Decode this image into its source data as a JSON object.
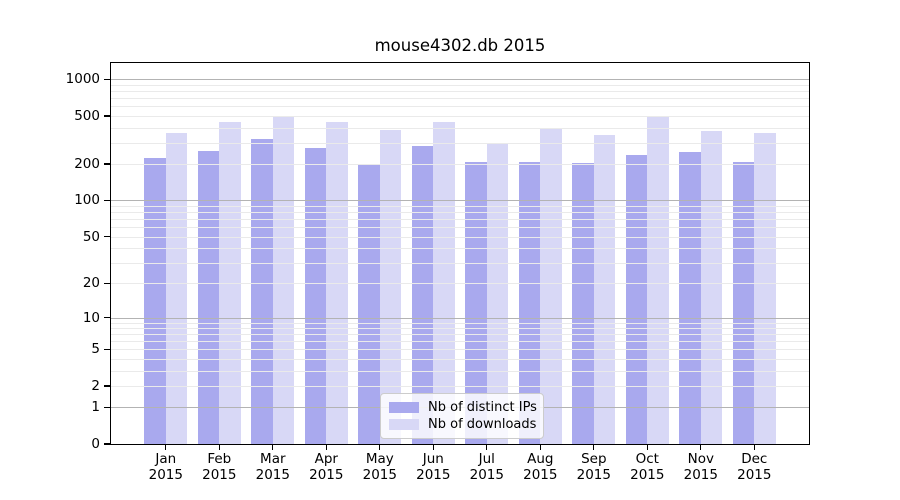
{
  "title": "mouse4302.db 2015",
  "chart_data": {
    "type": "bar",
    "title": "mouse4302.db 2015",
    "categories": [
      "Jan",
      "Feb",
      "Mar",
      "Apr",
      "May",
      "Jun",
      "Jul",
      "Aug",
      "Sep",
      "Oct",
      "Nov",
      "Dec"
    ],
    "x_tick_second_line": "2015",
    "series": [
      {
        "name": "Nb of distinct IPs",
        "color": "#a9a9ee",
        "values": [
          227,
          257,
          320,
          273,
          199,
          283,
          208,
          210,
          206,
          239,
          251,
          208
        ]
      },
      {
        "name": "Nb of downloads",
        "color": "#d8d8f6",
        "values": [
          360,
          442,
          495,
          450,
          382,
          442,
          298,
          394,
          349,
          495,
          375,
          360
        ]
      }
    ],
    "yscale": "log1p",
    "ylim": [
      0,
      1365
    ],
    "y_ticks": [
      0,
      1,
      2,
      5,
      10,
      20,
      50,
      100,
      200,
      500,
      1000
    ],
    "y_major_gridlines": [
      1,
      10,
      100,
      1000
    ],
    "y_minor_gridlines": [
      2,
      3,
      4,
      5,
      6,
      7,
      8,
      9,
      20,
      30,
      40,
      50,
      60,
      70,
      80,
      90,
      200,
      300,
      400,
      500,
      600,
      700,
      800,
      900
    ],
    "grid": true,
    "legend_position": "lower center"
  },
  "colors": {
    "bar_distinct_ips": "#a9a9ee",
    "bar_downloads": "#d8d8f6",
    "grid_major": "#b3b3b3",
    "grid_minor": "#eaeaea",
    "axis": "#000000",
    "background": "#ffffff"
  }
}
